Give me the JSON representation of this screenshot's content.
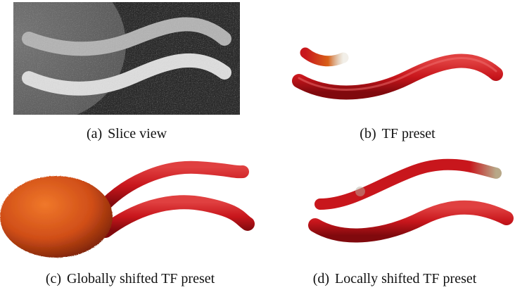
{
  "figure": {
    "panels": [
      {
        "id": "a",
        "label": "(a)",
        "caption": "Slice view"
      },
      {
        "id": "b",
        "label": "(b)",
        "caption": "TF preset"
      },
      {
        "id": "c",
        "label": "(c)",
        "caption": "Globally shifted TF preset"
      },
      {
        "id": "d",
        "label": "(d)",
        "caption": "Locally shifted TF preset"
      }
    ]
  },
  "colors": {
    "slice_background": "#2a2a2a",
    "slice_ellipse": "#6a6a6a",
    "slice_tube_upper": "#b8b8b8",
    "slice_tube_lower": "#e0e0e0",
    "tube_red": "#c8161c",
    "tube_red_dark": "#8a0c10",
    "tube_highlight": "#f06060",
    "blob_orange": "#d8541a",
    "blob_dark": "#8a2a08",
    "tip_noise": "#a89880"
  }
}
